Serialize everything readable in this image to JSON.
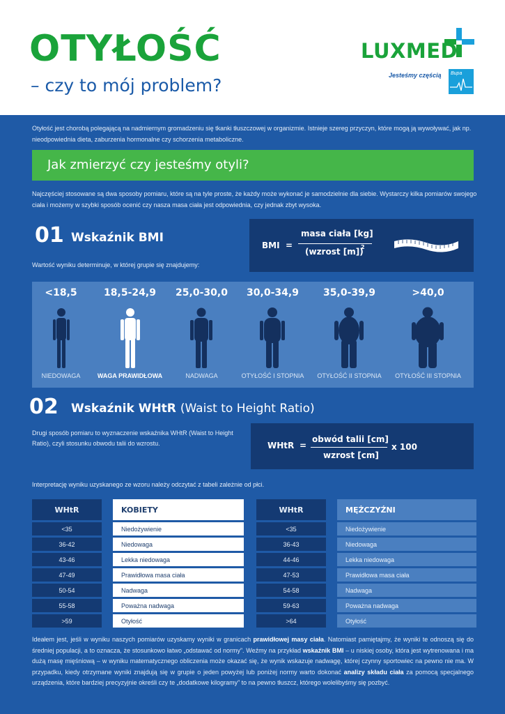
{
  "header": {
    "title": "OTYŁOŚĆ",
    "subtitle": "– czy to mój problem?",
    "logo_text": "LUXMED",
    "tagline": "Jesteśmy częścią",
    "bupa_text": "Bupa"
  },
  "intro_text": "Otyłość jest chorobą polegającą na nadmiernym gromadzeniu się tkanki tłuszczowej w organizmie. Istnieje szereg przyczyn, które mogą ją wywoływać, jak np. nieodpowiednia dieta, zaburzenia hormonalne czy schorzenia metaboliczne.",
  "banner_title": "Jak zmierzyć czy jesteśmy otyli?",
  "methods_text": "Najczęściej stosowane są dwa sposoby pomiaru, które są na tyle proste, że każdy może wykonać je samodzielnie dla siebie. Wystarczy kilka pomiarów swojego ciała i możemy w szybki sposób ocenić czy nasza masa ciała jest odpowiednia, czy jednak zbyt wysoka.",
  "bmi": {
    "number": "01",
    "title": "Wskaźnik BMI",
    "formula_label": "BMI",
    "equals": "=",
    "numerator": "masa ciała [kg]",
    "denominator": "(wzrost [m])",
    "exponent": "2",
    "lead": "Wartość wyniku determinuje, w której grupie się znajdujemy:",
    "categories": [
      {
        "range": "<18,5",
        "label": "NIEDOWAGA"
      },
      {
        "range": "18,5-24,9",
        "label": "WAGA PRAWIDŁOWA"
      },
      {
        "range": "25,0-30,0",
        "label": "NADWAGA"
      },
      {
        "range": "30,0-34,9",
        "label": "OTYŁOŚĆ I STOPNIA"
      },
      {
        "range": "35,0-39,9",
        "label": "OTYŁOŚĆ II STOPNIA"
      },
      {
        "range": ">40,0",
        "label": "OTYŁOŚĆ III STOPNIA"
      }
    ],
    "highlighted_category": "WAGA PRAWIDŁOWA"
  },
  "whtr": {
    "number": "02",
    "title": "Wskaźnik WHtR",
    "title_sub": "(Waist to Height Ratio)",
    "description": "Drugi sposób pomiaru to wyznaczenie wskaźnika WHtR (Waist to Height Ratio), czyli stosunku obwodu talii do wzrostu.",
    "formula_label": "WHtR",
    "equals": "=",
    "numerator": "obwód talii [cm]",
    "denominator": "wzrost [cm]",
    "multiplier": "x 100",
    "interpretation": "Interpretację wyniku uzyskanego ze wzoru należy odczytać z tabeli zależnie od płci."
  },
  "table_women": {
    "col1": "WHtR",
    "col2": "KOBIETY",
    "rows": [
      [
        "<35",
        "Niedożywienie"
      ],
      [
        "36-42",
        "Niedowaga"
      ],
      [
        "43-46",
        "Lekka niedowaga"
      ],
      [
        "47-49",
        "Prawidłowa masa ciała"
      ],
      [
        "50-54",
        "Nadwaga"
      ],
      [
        "55-58",
        "Poważna nadwaga"
      ],
      [
        ">59",
        "Otyłość"
      ]
    ]
  },
  "table_men": {
    "col1": "WHtR",
    "col2": "MĘŻCZYŹNI",
    "rows": [
      [
        "<35",
        "Niedożywienie"
      ],
      [
        "36-43",
        "Niedowaga"
      ],
      [
        "44-46",
        "Lekka niedowaga"
      ],
      [
        "47-53",
        "Prawidłowa masa ciała"
      ],
      [
        "54-58",
        "Nadwaga"
      ],
      [
        "59-63",
        "Poważna nadwaga"
      ],
      [
        ">64",
        "Otyłość"
      ]
    ]
  },
  "final": {
    "p1": "Ideałem jest, jeśli w wyniku naszych pomiarów uzyskamy wyniki w granicach ",
    "b1": "prawidłowej masy ciała",
    "p2": ". Natomiast pamiętajmy, że wyniki te odnoszą się do średniej populacji, a to oznacza, że stosunkowo łatwo „odstawać od normy”. Weźmy na przykład ",
    "b2": "wskaźnik BMI",
    "p3": " – u niskiej osoby, która jest wytrenowana i ma dużą masę mięśniową – w wyniku matematycznego obliczenia może okazać się, że wynik wskazuje nadwagę, której czynny sportowiec na pewno nie ma. W przypadku, kiedy otrzymane wyniki znajdują się w grupie o jeden powyżej lub poniżej normy warto dokonać ",
    "b3": "analizy składu ciała",
    "p4": " za pomocą specjalnego urządzenia, które bardziej precyzyjnie określi czy te „dodatkowe kilogramy” to na pewno tłuszcz, którego wolelibyśmy się pozbyć."
  },
  "colors": {
    "green": "#45b649",
    "title_green": "#1aa33a",
    "blue_bg": "#1f5aa6",
    "dark_blue": "#143a73",
    "mid_blue": "#4a7fc0",
    "figure_dark": "#14305e",
    "figure_light": "#ffffff"
  },
  "icons": [
    "tape-measure-icon",
    "body-silhouette-icon",
    "luxmed-cross-icon",
    "bupa-logo-icon"
  ]
}
